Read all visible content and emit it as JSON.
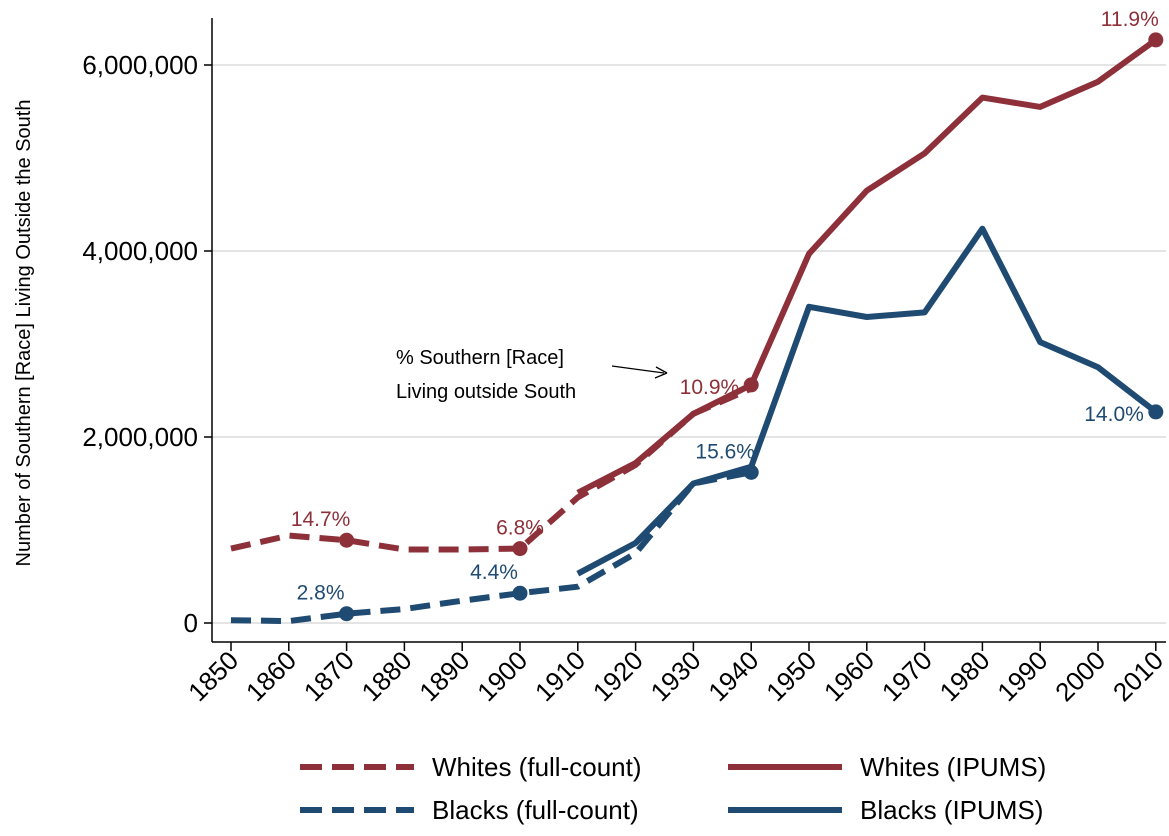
{
  "colors": {
    "whites": "#8e3039",
    "blacks": "#1f4a71"
  },
  "chart_data": {
    "type": "line",
    "ylabel": "Number of Southern [Race] Living Outside the South",
    "xlabel": "",
    "title": "",
    "x": [
      1850,
      1860,
      1870,
      1880,
      1890,
      1900,
      1910,
      1920,
      1930,
      1940,
      1950,
      1960,
      1970,
      1980,
      1990,
      2000,
      2010
    ],
    "ylim": [
      0,
      6500000
    ],
    "yticks": [
      0,
      2000000,
      4000000,
      6000000
    ],
    "ytick_labels": [
      "0",
      "2,000,000",
      "4,000,000",
      "6,000,000"
    ],
    "grid": "horizontal",
    "legend_position": "bottom",
    "series": [
      {
        "name": "Whites (full-count)",
        "style": "dashed",
        "color": "whites",
        "x": [
          1850,
          1860,
          1870,
          1880,
          1890,
          1900,
          1910,
          1920,
          1930,
          1940
        ],
        "y": [
          800000,
          940000,
          890000,
          790000,
          790000,
          800000,
          1350000,
          1700000,
          2250000,
          2520000
        ]
      },
      {
        "name": "Blacks (full-count)",
        "style": "dashed",
        "color": "blacks",
        "x": [
          1850,
          1860,
          1870,
          1880,
          1890,
          1900,
          1910,
          1920,
          1930,
          1940
        ],
        "y": [
          30000,
          20000,
          100000,
          150000,
          240000,
          320000,
          390000,
          750000,
          1500000,
          1620000
        ]
      },
      {
        "name": "Whites (IPUMS)",
        "style": "solid",
        "color": "whites",
        "x": [
          1910,
          1920,
          1930,
          1940,
          1950,
          1960,
          1970,
          1980,
          1990,
          2000,
          2010
        ],
        "y": [
          1400000,
          1720000,
          2250000,
          2560000,
          3970000,
          4650000,
          5050000,
          5650000,
          5550000,
          5820000,
          6270000
        ]
      },
      {
        "name": "Blacks (IPUMS)",
        "style": "solid",
        "color": "blacks",
        "x": [
          1910,
          1920,
          1930,
          1940,
          1950,
          1960,
          1970,
          1980,
          1990,
          2000,
          2010
        ],
        "y": [
          530000,
          860000,
          1500000,
          1680000,
          3400000,
          3290000,
          3340000,
          4240000,
          3020000,
          2750000,
          2270000
        ]
      }
    ],
    "markers": [
      {
        "x": 1870,
        "y": 890000,
        "color": "whites",
        "label": "14.7%",
        "pos": "above-left"
      },
      {
        "x": 1900,
        "y": 800000,
        "color": "whites",
        "label": "6.8%",
        "pos": "above"
      },
      {
        "x": 1940,
        "y": 2560000,
        "color": "whites",
        "label": "10.9%",
        "pos": "left"
      },
      {
        "x": 2010,
        "y": 6270000,
        "color": "whites",
        "label": "11.9%",
        "pos": "above-left"
      },
      {
        "x": 1870,
        "y": 100000,
        "color": "blacks",
        "label": "2.8%",
        "pos": "above-left"
      },
      {
        "x": 1900,
        "y": 320000,
        "color": "blacks",
        "label": "4.4%",
        "pos": "above-left"
      },
      {
        "x": 1940,
        "y": 1620000,
        "color": "blacks",
        "label": "15.6%",
        "pos": "above-left"
      },
      {
        "x": 2010,
        "y": 2270000,
        "color": "blacks",
        "label": "14.0%",
        "pos": "left"
      }
    ],
    "annotations": [
      {
        "lines": [
          "% Southern [Race]",
          "Living outside South"
        ]
      }
    ]
  }
}
